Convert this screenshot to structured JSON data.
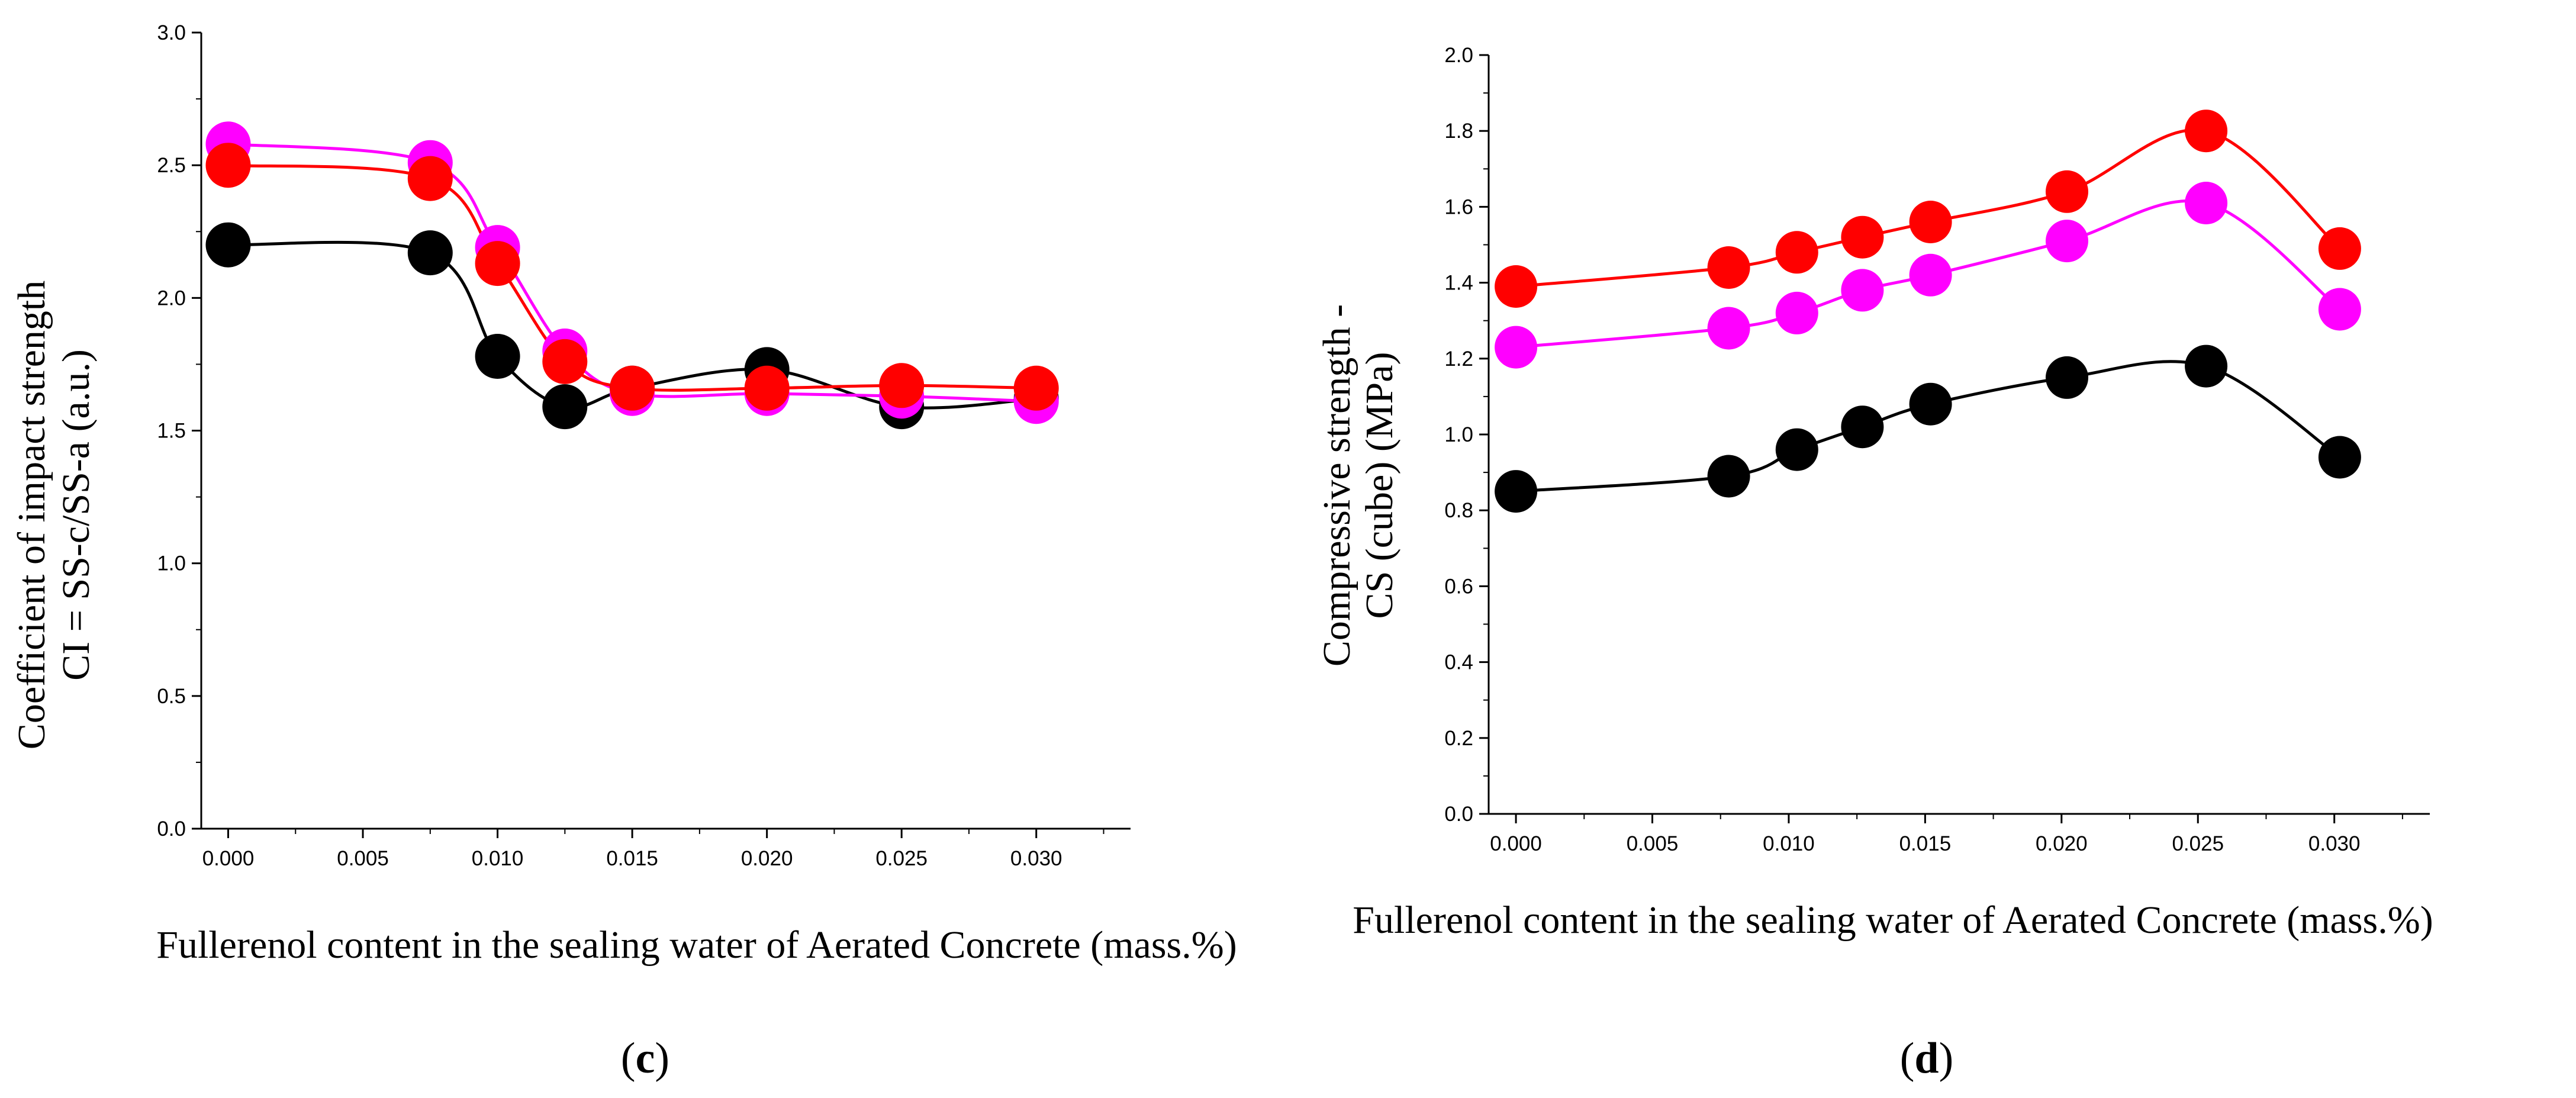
{
  "figure": {
    "panel_labels": [
      "c",
      "d"
    ]
  },
  "chart_data": [
    {
      "panel": "c",
      "type": "scatter",
      "fit": "smooth-line",
      "title": "",
      "xlabel": "Fullerenol content in the sealing water of  Aerated Concrete (mass.%)",
      "ylabel_lines": [
        "Coefficient of impact strength",
        "CI = SS-c/SS-a (a.u.)"
      ],
      "xlim": [
        -0.001,
        0.0335
      ],
      "ylim": [
        0,
        3.0
      ],
      "xticks": [
        0,
        0.005,
        0.01,
        0.015,
        0.02,
        0.025,
        0.03
      ],
      "xtick_labels": [
        "0.000",
        "0.005",
        "0.010",
        "0.015",
        "0.020",
        "0.025",
        "0.030"
      ],
      "yticks": [
        0,
        0.5,
        1.0,
        1.5,
        2.0,
        2.5,
        3.0
      ],
      "ytick_labels": [
        "0.0",
        "0.5",
        "1.0",
        "1.5",
        "2.0",
        "2.5",
        "3.0"
      ],
      "x": [
        0,
        0.0075,
        0.01,
        0.0125,
        0.015,
        0.02,
        0.025,
        0.03
      ],
      "series": [
        {
          "name": "black",
          "color": "#000000",
          "values": [
            2.2,
            2.17,
            1.78,
            1.59,
            1.66,
            1.73,
            1.59,
            1.62
          ]
        },
        {
          "name": "magenta",
          "color": "#ff00ff",
          "values": [
            2.58,
            2.51,
            2.19,
            1.8,
            1.64,
            1.64,
            1.63,
            1.61
          ]
        },
        {
          "name": "red",
          "color": "#ff0000",
          "values": [
            2.5,
            2.45,
            2.13,
            1.76,
            1.66,
            1.66,
            1.67,
            1.66
          ]
        }
      ]
    },
    {
      "panel": "d",
      "type": "scatter",
      "fit": "smooth-line",
      "title": "",
      "xlabel": "Fullerenol content in the sealing water of  Aerated Concrete (mass.%)",
      "ylabel_lines": [
        "Compressive strength -",
        "CS (cube) (MPa)"
      ],
      "xlim": [
        -0.001,
        0.0335
      ],
      "ylim": [
        0,
        2.0
      ],
      "xticks": [
        0,
        0.005,
        0.01,
        0.015,
        0.02,
        0.025,
        0.03
      ],
      "xtick_labels": [
        "0.000",
        "0.005",
        "0.010",
        "0.015",
        "0.020",
        "0.025",
        "0.030"
      ],
      "yticks": [
        0,
        0.2,
        0.4,
        0.6,
        0.8,
        1.0,
        1.2,
        1.4,
        1.6,
        1.8,
        2.0
      ],
      "ytick_labels": [
        "0.0",
        "0.2",
        "0.4",
        "0.6",
        "0.8",
        "1.0",
        "1.2",
        "1.4",
        "1.6",
        "1.8",
        "2.0"
      ],
      "x": [
        0,
        0.0078,
        0.0103,
        0.0127,
        0.0152,
        0.0202,
        0.0253,
        0.0302
      ],
      "series": [
        {
          "name": "black",
          "color": "#000000",
          "values": [
            0.85,
            0.89,
            0.96,
            1.02,
            1.08,
            1.15,
            1.18,
            0.94
          ]
        },
        {
          "name": "magenta",
          "color": "#ff00ff",
          "values": [
            1.23,
            1.28,
            1.32,
            1.38,
            1.42,
            1.51,
            1.61,
            1.33
          ]
        },
        {
          "name": "red",
          "color": "#ff0000",
          "values": [
            1.39,
            1.44,
            1.48,
            1.52,
            1.56,
            1.64,
            1.8,
            1.49
          ]
        }
      ]
    }
  ]
}
